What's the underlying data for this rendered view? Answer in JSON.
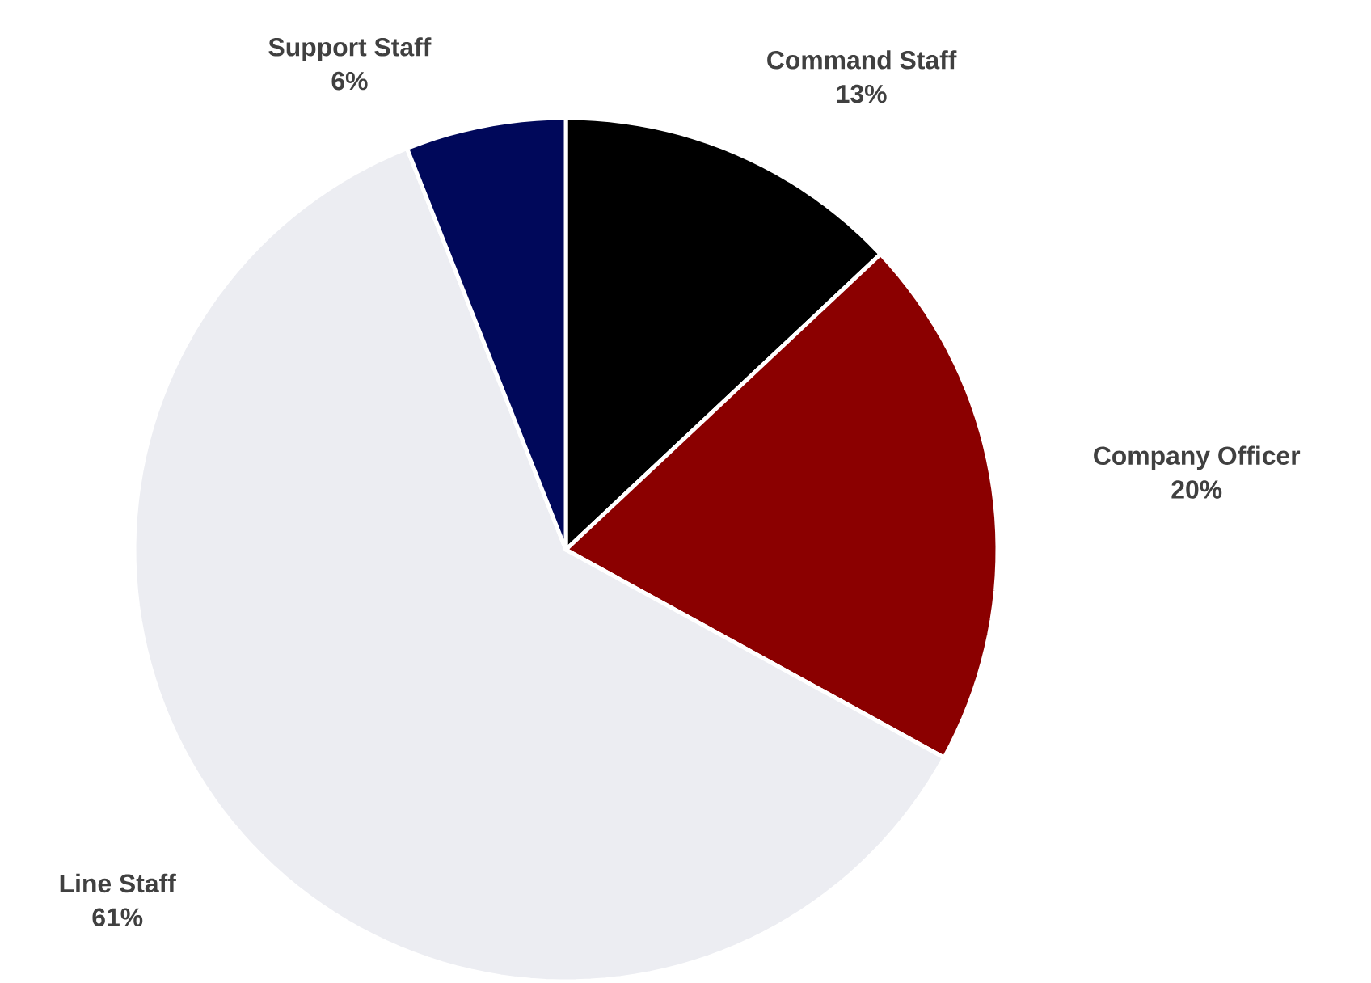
{
  "chart_data": {
    "type": "pie",
    "categories": [
      "Command Staff",
      "Company Officer",
      "Line Staff",
      "Support Staff"
    ],
    "values": [
      13,
      20,
      61,
      6
    ],
    "value_labels": [
      "13%",
      "20%",
      "61%",
      "6%"
    ],
    "colors": [
      "#000000",
      "#8b0000",
      "#ecedf2",
      "#00085a"
    ]
  }
}
